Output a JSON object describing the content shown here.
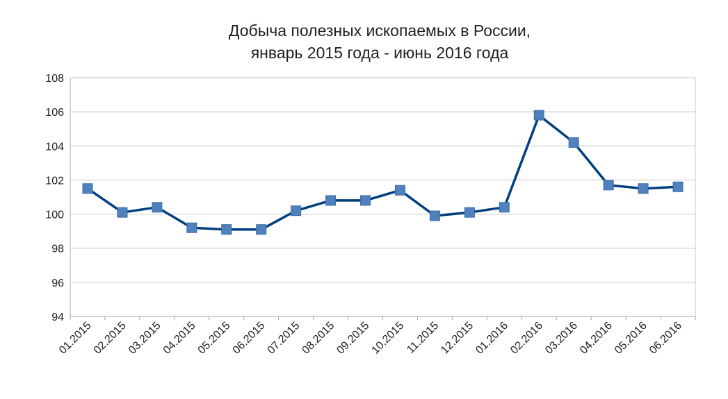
{
  "chart_data": {
    "type": "line",
    "title_lines": [
      "Добыча полезных ископаемых в России,",
      "январь 2015 года - июнь 2016 года"
    ],
    "categories": [
      "01.2015",
      "02.2015",
      "03.2015",
      "04.2015",
      "05.2015",
      "06.2015",
      "07.2015",
      "08.2015",
      "09.2015",
      "10.2015",
      "11.2015",
      "12.2015",
      "01.2016",
      "02.2016",
      "03.2016",
      "04.2016",
      "05.2016",
      "06.2016"
    ],
    "series": [
      {
        "values": [
          101.5,
          100.1,
          100.4,
          99.2,
          99.1,
          99.1,
          100.2,
          100.8,
          100.8,
          101.4,
          99.9,
          100.1,
          100.4,
          105.8,
          104.2,
          101.7,
          101.5,
          101.6
        ],
        "color": "#003f7f",
        "marker_color": "#4f81bd"
      }
    ],
    "ylim": [
      94,
      108
    ],
    "yticks": [
      94,
      96,
      98,
      100,
      102,
      104,
      106,
      108
    ],
    "grid": true,
    "legend": "none"
  }
}
